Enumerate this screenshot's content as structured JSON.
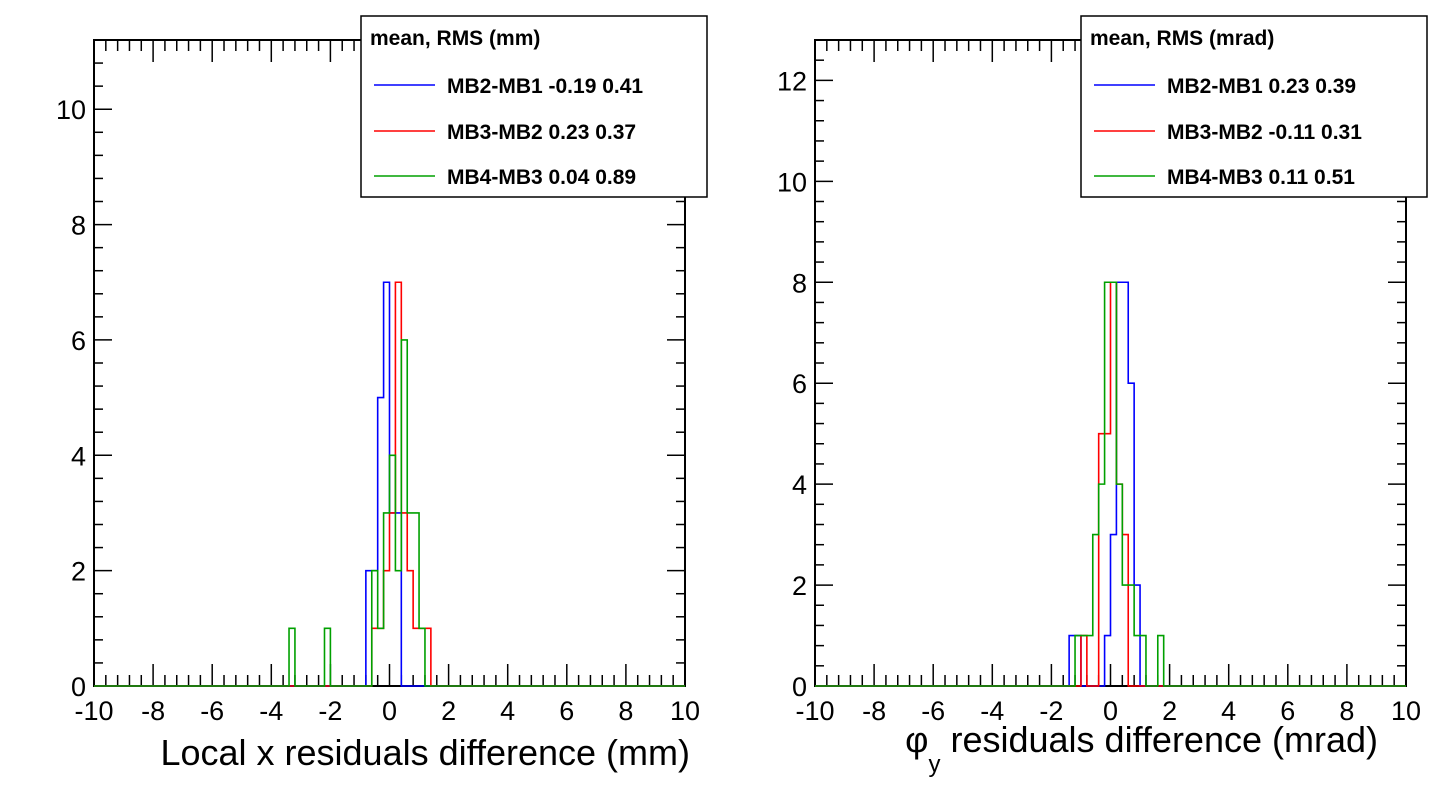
{
  "chart_data": [
    {
      "type": "histogram",
      "xlabel": "Local x residuals difference (mm)",
      "xlim": [
        -10,
        10
      ],
      "ylim": [
        0,
        11.2
      ],
      "x_ticks": [
        "-10",
        "-8",
        "-6",
        "-4",
        "-2",
        "0",
        "2",
        "4",
        "6",
        "8",
        "10"
      ],
      "y_ticks": [
        "0",
        "2",
        "4",
        "6",
        "8",
        "10"
      ],
      "legend": {
        "header": "mean, RMS (mm)",
        "placement": "top-right",
        "entries": [
          "MB2-MB1 -0.19 0.41",
          "MB3-MB2 0.23 0.37",
          "MB4-MB3 0.04 0.89"
        ]
      },
      "bin_width": 0.2,
      "series": [
        {
          "name": "MB2-MB1",
          "color": "#0000ff",
          "bins": [
            [
              -0.8,
              2
            ],
            [
              -0.6,
              2
            ],
            [
              -0.4,
              5
            ],
            [
              -0.2,
              7
            ],
            [
              0.0,
              3
            ],
            [
              0.2,
              3
            ]
          ]
        },
        {
          "name": "MB3-MB2",
          "color": "#ff0000",
          "bins": [
            [
              -0.6,
              1
            ],
            [
              -0.4,
              1
            ],
            [
              -0.2,
              2
            ],
            [
              0.0,
              3
            ],
            [
              0.2,
              7
            ],
            [
              0.4,
              3
            ],
            [
              0.6,
              2
            ],
            [
              0.8,
              1
            ],
            [
              1.0,
              1
            ],
            [
              1.2,
              1
            ]
          ]
        },
        {
          "name": "MB4-MB3",
          "color": "#00a000",
          "bins": [
            [
              -3.4,
              1
            ],
            [
              -2.2,
              1
            ],
            [
              -0.6,
              2
            ],
            [
              -0.4,
              1
            ],
            [
              -0.2,
              3
            ],
            [
              0.0,
              4
            ],
            [
              0.2,
              2
            ],
            [
              0.4,
              6
            ],
            [
              0.6,
              3
            ],
            [
              0.8,
              3
            ],
            [
              1.0,
              1
            ]
          ]
        }
      ]
    },
    {
      "type": "histogram",
      "xlabel_symbol": "φ",
      "xlabel_sub": "y",
      "xlabel_rest": " residuals difference (mrad)",
      "xlim": [
        -10,
        10
      ],
      "ylim": [
        0,
        12.8
      ],
      "x_ticks": [
        "-10",
        "-8",
        "-6",
        "-4",
        "-2",
        "0",
        "2",
        "4",
        "6",
        "8",
        "10"
      ],
      "y_ticks": [
        "0",
        "2",
        "4",
        "6",
        "8",
        "10",
        "12"
      ],
      "legend": {
        "header": "mean, RMS (mrad)",
        "placement": "top-right",
        "entries": [
          "MB2-MB1 0.23 0.39",
          "MB3-MB2 -0.11 0.31",
          "MB4-MB3 0.11 0.51"
        ]
      },
      "bin_width": 0.2,
      "series": [
        {
          "name": "MB2-MB1",
          "color": "#0000ff",
          "bins": [
            [
              -1.4,
              1
            ],
            [
              -1.2,
              1
            ],
            [
              -0.2,
              1
            ],
            [
              0.0,
              3
            ],
            [
              0.2,
              8
            ],
            [
              0.4,
              8
            ],
            [
              0.6,
              6
            ],
            [
              0.8,
              2
            ]
          ]
        },
        {
          "name": "MB3-MB2",
          "color": "#ff0000",
          "bins": [
            [
              -1.0,
              1
            ],
            [
              -0.4,
              5
            ],
            [
              -0.2,
              5
            ],
            [
              0.0,
              8
            ],
            [
              0.2,
              4
            ],
            [
              0.4,
              3
            ]
          ]
        },
        {
          "name": "MB4-MB3",
          "color": "#00a000",
          "bins": [
            [
              -1.2,
              1
            ],
            [
              -1.0,
              1
            ],
            [
              -0.8,
              1
            ],
            [
              -0.6,
              3
            ],
            [
              -0.4,
              4
            ],
            [
              -0.2,
              8
            ],
            [
              0.0,
              8
            ],
            [
              0.2,
              4
            ],
            [
              0.4,
              2
            ],
            [
              0.6,
              2
            ],
            [
              0.8,
              1
            ],
            [
              1.0,
              1
            ],
            [
              1.6,
              1
            ]
          ]
        }
      ]
    }
  ]
}
